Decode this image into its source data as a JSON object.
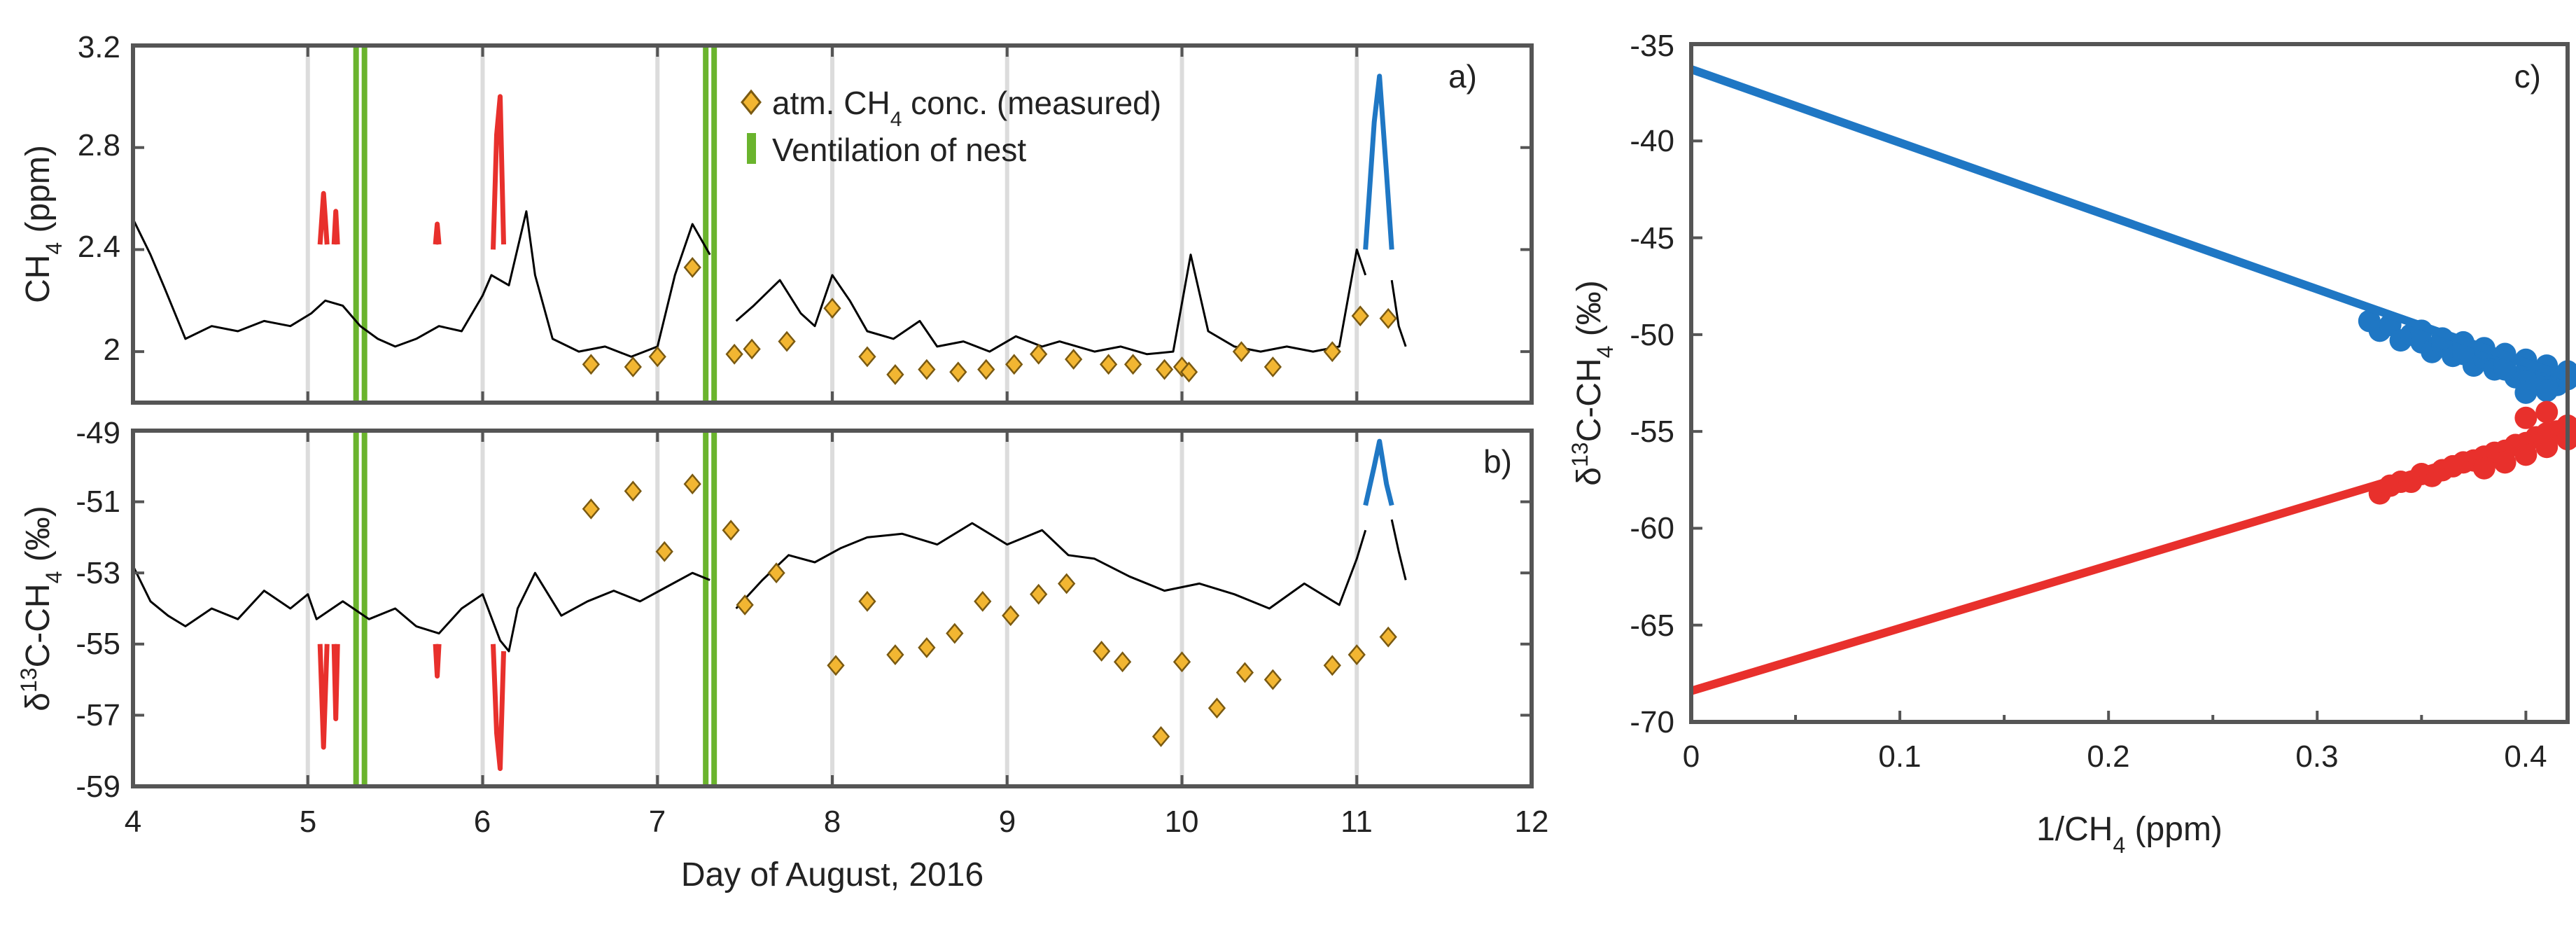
{
  "colors": {
    "measured": "#f2b632",
    "measured_edge": "#7a5a12",
    "ventilation": "#6ab42d",
    "series_main": "#000000",
    "series_red": "#e8302c",
    "series_blue": "#1f77c4",
    "grid": "#dcdcdc"
  },
  "chart_data": [
    {
      "id": "a",
      "type": "line",
      "panel_label": "a)",
      "xlabel": "",
      "ylabel": "CH4 (ppm)",
      "ylabel_main": "CH",
      "ylabel_sub": "4",
      "ylabel_tail": " (ppm)",
      "xlim": [
        4,
        12
      ],
      "ylim": [
        1.8,
        3.2
      ],
      "yticks": [
        2,
        2.4,
        2.8,
        3.2
      ],
      "ytick_labels": [
        "2",
        "2.4",
        "2.8",
        "3.2"
      ],
      "xticks": [
        4,
        5,
        6,
        7,
        8,
        9,
        10,
        11,
        12
      ],
      "gridlines_x": [
        5,
        6,
        7,
        8,
        9,
        10,
        11
      ],
      "ventilation_x": [
        5.3,
        7.3
      ],
      "legend": {
        "position": "top-center",
        "entries": [
          {
            "marker": "diamond",
            "text_main": "atm. CH",
            "text_sub": "4",
            "text_tail": " conc. (measured)",
            "text": "atm. CH4 conc. (measured)"
          },
          {
            "marker": "bar",
            "text": "Ventilation of nest"
          }
        ]
      },
      "measured_points": {
        "x": [
          6.62,
          6.86,
          7.0,
          7.2,
          7.44,
          7.54,
          7.74,
          8.0,
          8.2,
          8.36,
          8.54,
          8.72,
          8.88,
          9.04,
          9.18,
          9.38,
          9.58,
          9.72,
          9.9,
          10.0,
          10.04,
          10.34,
          10.52,
          10.86,
          11.02,
          11.18
        ],
        "y": [
          1.95,
          1.94,
          1.98,
          2.33,
          1.99,
          2.01,
          2.04,
          2.17,
          1.98,
          1.91,
          1.93,
          1.92,
          1.93,
          1.95,
          1.99,
          1.97,
          1.95,
          1.95,
          1.93,
          1.94,
          1.92,
          2.0,
          1.94,
          2.0,
          2.14,
          2.13
        ]
      },
      "series": [
        {
          "name": "CH4 (black)",
          "color": "#000000",
          "x": [
            4.0,
            4.1,
            4.18,
            4.3,
            4.45,
            4.6,
            4.75,
            4.9,
            5.02,
            5.1,
            5.2,
            5.3,
            5.4,
            5.5,
            5.62,
            5.75,
            5.88,
            6.0,
            6.05,
            6.15,
            6.25,
            6.3,
            6.4,
            6.55,
            6.7,
            6.85,
            7.0,
            7.1,
            7.2,
            7.3
          ],
          "y": [
            2.52,
            2.38,
            2.25,
            2.05,
            2.1,
            2.08,
            2.12,
            2.1,
            2.15,
            2.2,
            2.18,
            2.1,
            2.05,
            2.02,
            2.05,
            2.1,
            2.08,
            2.22,
            2.3,
            2.26,
            2.55,
            2.3,
            2.05,
            2.0,
            2.02,
            1.98,
            2.02,
            2.3,
            2.5,
            2.38
          ]
        },
        {
          "name": "CH4 (black, after gap)",
          "color": "#000000",
          "x": [
            7.45,
            7.55,
            7.7,
            7.82,
            7.9,
            8.0,
            8.1,
            8.2,
            8.35,
            8.5,
            8.6,
            8.75,
            8.9,
            9.05,
            9.2,
            9.3,
            9.5,
            9.65,
            9.8,
            9.95,
            10.05,
            10.15,
            10.3,
            10.45,
            10.6,
            10.75,
            10.9,
            11.0,
            11.05
          ],
          "y": [
            2.12,
            2.18,
            2.28,
            2.15,
            2.1,
            2.3,
            2.2,
            2.08,
            2.05,
            2.12,
            2.02,
            2.04,
            2.0,
            2.06,
            2.02,
            2.04,
            2.0,
            2.02,
            1.99,
            2.0,
            2.38,
            2.08,
            2.02,
            2.0,
            2.02,
            2.0,
            2.02,
            2.4,
            2.3
          ]
        },
        {
          "name": "CH4 (black, end)",
          "color": "#000000",
          "x": [
            11.2,
            11.24,
            11.28
          ],
          "y": [
            2.28,
            2.1,
            2.02
          ]
        },
        {
          "name": "CH4 (red, event 1)",
          "color": "#e8302c",
          "x": [
            5.07,
            5.09,
            5.11
          ],
          "y": [
            2.42,
            2.62,
            2.42
          ]
        },
        {
          "name": "CH4 (red, event 2)",
          "color": "#e8302c",
          "x": [
            5.15,
            5.16,
            5.17
          ],
          "y": [
            2.42,
            2.55,
            2.42
          ]
        },
        {
          "name": "CH4 (red, event 3)",
          "color": "#e8302c",
          "x": [
            5.73,
            5.74,
            5.75
          ],
          "y": [
            2.42,
            2.5,
            2.42
          ]
        },
        {
          "name": "CH4 (red, event 4)",
          "color": "#e8302c",
          "x": [
            6.06,
            6.08,
            6.1,
            6.12
          ],
          "y": [
            2.4,
            2.85,
            3.0,
            2.42
          ]
        },
        {
          "name": "CH4 (blue, event)",
          "color": "#1f77c4",
          "x": [
            11.05,
            11.1,
            11.13,
            11.17,
            11.2
          ],
          "y": [
            2.4,
            2.9,
            3.08,
            2.7,
            2.4
          ]
        }
      ]
    },
    {
      "id": "b",
      "type": "line",
      "panel_label": "b)",
      "xlabel": "Day of August, 2016",
      "ylabel": "δ13C-CH4 (‰)",
      "ylabel_pre": "δ",
      "ylabel_sup": "13",
      "ylabel_mid": "C-CH",
      "ylabel_sub": "4",
      "ylabel_tail": " (‰)",
      "xlim": [
        4,
        12
      ],
      "ylim": [
        -59,
        -49
      ],
      "yticks": [
        -59,
        -57,
        -55,
        -53,
        -51,
        -49
      ],
      "ytick_labels": [
        "-59",
        "-57",
        "-55",
        "-53",
        "-51",
        "-49"
      ],
      "xticks": [
        4,
        5,
        6,
        7,
        8,
        9,
        10,
        11,
        12
      ],
      "xtick_labels": [
        "4",
        "5",
        "6",
        "7",
        "8",
        "9",
        "10",
        "11",
        "12"
      ],
      "gridlines_x": [
        5,
        6,
        7,
        8,
        9,
        10,
        11
      ],
      "ventilation_x": [
        5.3,
        7.3
      ],
      "measured_points": {
        "x": [
          6.62,
          6.86,
          7.04,
          7.2,
          7.42,
          7.5,
          7.68,
          8.02,
          8.2,
          8.36,
          8.54,
          8.7,
          8.86,
          9.02,
          9.18,
          9.34,
          9.54,
          9.66,
          9.88,
          10.0,
          10.2,
          10.36,
          10.52,
          10.86,
          11.0,
          11.18
        ],
        "y": [
          -51.2,
          -50.7,
          -52.4,
          -50.5,
          -51.8,
          -53.9,
          -53.0,
          -55.6,
          -53.8,
          -55.3,
          -55.1,
          -54.7,
          -53.8,
          -54.2,
          -53.6,
          -53.3,
          -55.2,
          -55.5,
          -57.6,
          -55.5,
          -56.8,
          -55.8,
          -56.0,
          -55.6,
          -55.3,
          -54.8
        ]
      },
      "series": [
        {
          "name": "d13C (black)",
          "color": "#000000",
          "x": [
            4.0,
            4.1,
            4.2,
            4.3,
            4.45,
            4.6,
            4.75,
            4.9,
            5.0,
            5.05,
            5.2,
            5.35,
            5.5,
            5.62,
            5.75,
            5.88,
            6.0,
            6.1,
            6.15,
            6.2,
            6.3,
            6.45,
            6.6,
            6.75,
            6.9,
            7.05,
            7.2,
            7.3
          ],
          "y": [
            -52.8,
            -53.8,
            -54.2,
            -54.5,
            -54.0,
            -54.3,
            -53.5,
            -54.0,
            -53.6,
            -54.3,
            -53.8,
            -54.3,
            -54.0,
            -54.5,
            -54.7,
            -54.0,
            -53.6,
            -54.9,
            -55.2,
            -54.0,
            -53.0,
            -54.2,
            -53.8,
            -53.5,
            -53.8,
            -53.4,
            -53.0,
            -53.2
          ]
        },
        {
          "name": "d13C (black, after gap)",
          "color": "#000000",
          "x": [
            7.45,
            7.6,
            7.75,
            7.9,
            8.05,
            8.2,
            8.4,
            8.6,
            8.8,
            9.0,
            9.2,
            9.35,
            9.5,
            9.7,
            9.9,
            10.1,
            10.3,
            10.5,
            10.7,
            10.9,
            11.0,
            11.05
          ],
          "y": [
            -54.0,
            -53.2,
            -52.5,
            -52.7,
            -52.3,
            -52.0,
            -51.9,
            -52.2,
            -51.6,
            -52.2,
            -51.8,
            -52.5,
            -52.6,
            -53.1,
            -53.5,
            -53.3,
            -53.6,
            -54.0,
            -53.3,
            -53.9,
            -52.6,
            -51.8
          ]
        },
        {
          "name": "d13C (black, end)",
          "color": "#000000",
          "x": [
            11.2,
            11.24,
            11.28
          ],
          "y": [
            -51.5,
            -52.4,
            -53.2
          ]
        },
        {
          "name": "d13C (red, event 1)",
          "color": "#e8302c",
          "x": [
            5.07,
            5.09,
            5.11
          ],
          "y": [
            -55.0,
            -57.9,
            -55.0
          ]
        },
        {
          "name": "d13C (red, event 2)",
          "color": "#e8302c",
          "x": [
            5.15,
            5.16,
            5.17
          ],
          "y": [
            -55.0,
            -57.1,
            -55.0
          ]
        },
        {
          "name": "d13C (red, event 3)",
          "color": "#e8302c",
          "x": [
            5.73,
            5.74,
            5.75
          ],
          "y": [
            -55.0,
            -55.9,
            -55.0
          ]
        },
        {
          "name": "d13C (red, event 4)",
          "color": "#e8302c",
          "x": [
            6.06,
            6.08,
            6.1,
            6.12
          ],
          "y": [
            -55.0,
            -57.5,
            -58.5,
            -55.2
          ]
        },
        {
          "name": "d13C (blue, event)",
          "color": "#1f77c4",
          "x": [
            11.05,
            11.1,
            11.13,
            11.17,
            11.2
          ],
          "y": [
            -51.1,
            -50.0,
            -49.3,
            -50.5,
            -51.1
          ]
        }
      ]
    },
    {
      "id": "c",
      "type": "scatter",
      "panel_label": "c)",
      "xlabel": "1/CH4 (ppm)",
      "xlabel_main": "1/CH",
      "xlabel_sub": "4",
      "xlabel_tail": " (ppm)",
      "ylabel": "δ13C-CH4 (‰)",
      "ylabel_pre": "δ",
      "ylabel_sup": "13",
      "ylabel_mid": "C-CH",
      "ylabel_sub": "4",
      "ylabel_tail": " (‰)",
      "xlim": [
        0,
        0.42
      ],
      "ylim": [
        -70,
        -35
      ],
      "xticks": [
        0,
        0.1,
        0.2,
        0.3,
        0.4
      ],
      "xtick_labels": [
        "0",
        "0.1",
        "0.2",
        "0.3",
        "0.4"
      ],
      "yticks": [
        -70,
        -65,
        -60,
        -55,
        -50,
        -45,
        -40,
        -35
      ],
      "ytick_labels": [
        "-70",
        "-65",
        "-60",
        "-55",
        "-50",
        "-45",
        "-40",
        "-35"
      ],
      "fits": [
        {
          "name": "Keeling fit (blue)",
          "color": "#1f77c4",
          "x": [
            0,
            0.42
          ],
          "y": [
            -36.3,
            -52.2
          ]
        },
        {
          "name": "Keeling fit (red)",
          "color": "#e8302c",
          "x": [
            0,
            0.42
          ],
          "y": [
            -68.4,
            -54.8
          ]
        }
      ],
      "clusters": [
        {
          "name": "blue data points",
          "color": "#1f77c4",
          "x": [
            0.325,
            0.33,
            0.335,
            0.34,
            0.345,
            0.35,
            0.355,
            0.36,
            0.365,
            0.37,
            0.375,
            0.38,
            0.385,
            0.39,
            0.395,
            0.4,
            0.405,
            0.41,
            0.415,
            0.42,
            0.35,
            0.36,
            0.37,
            0.38,
            0.39,
            0.4,
            0.41,
            0.42,
            0.37,
            0.39,
            0.41,
            0.4
          ],
          "y": [
            -49.3,
            -49.8,
            -49.5,
            -50.3,
            -50.0,
            -50.4,
            -50.9,
            -50.6,
            -51.1,
            -51.0,
            -51.6,
            -51.2,
            -51.8,
            -51.5,
            -52.2,
            -51.9,
            -52.5,
            -52.0,
            -52.6,
            -52.3,
            -49.8,
            -50.2,
            -50.4,
            -50.7,
            -51.0,
            -51.3,
            -51.6,
            -51.9,
            -50.9,
            -51.8,
            -52.9,
            -53.0
          ]
        },
        {
          "name": "red data points",
          "color": "#e8302c",
          "x": [
            0.33,
            0.335,
            0.34,
            0.345,
            0.35,
            0.355,
            0.36,
            0.365,
            0.37,
            0.375,
            0.38,
            0.385,
            0.39,
            0.395,
            0.4,
            0.405,
            0.41,
            0.415,
            0.42,
            0.38,
            0.39,
            0.4,
            0.41,
            0.42,
            0.4,
            0.41
          ],
          "y": [
            -58.2,
            -57.8,
            -57.6,
            -57.6,
            -57.2,
            -57.3,
            -57.0,
            -56.8,
            -56.6,
            -56.5,
            -56.3,
            -56.1,
            -56.0,
            -55.7,
            -55.6,
            -55.3,
            -55.1,
            -55.0,
            -54.7,
            -56.9,
            -56.6,
            -56.2,
            -55.8,
            -55.4,
            -54.3,
            -54.0
          ]
        }
      ]
    }
  ]
}
